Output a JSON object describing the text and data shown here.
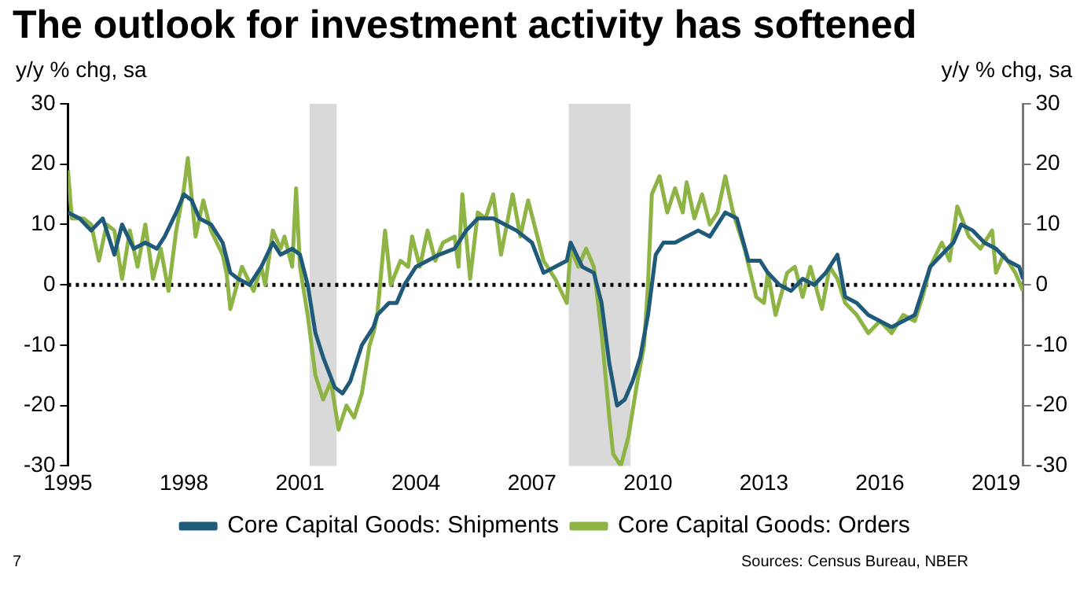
{
  "chart_data": {
    "type": "line",
    "title": "The outlook for investment activity has softened",
    "ylabel": "y/y % chg, sa",
    "y2label": "y/y % chg, sa",
    "annotations": [
      "7",
      "Sources: Census Bureau, NBER"
    ],
    "xlim": [
      1995,
      2019.7
    ],
    "xticks": [
      1995,
      1998,
      2001,
      2004,
      2007,
      2010,
      2013,
      2016,
      2019
    ],
    "ylim": [
      -30,
      30
    ],
    "yticks": [
      -30,
      -20,
      -10,
      0,
      10,
      20,
      30
    ],
    "y2lim": [
      -30,
      30
    ],
    "y2ticks": [
      -30,
      -20,
      -10,
      0,
      10,
      20,
      30
    ],
    "grid": false,
    "legend": "bottom",
    "line_style": "solid",
    "marker": "none",
    "ref_lines": [
      {
        "axis": "y",
        "value": 0,
        "color": "#000000",
        "line_style": "dotted"
      }
    ],
    "bands": [
      {
        "axis": "x",
        "from": 2001.25,
        "to": 2001.95,
        "color": "#d9d9d9"
      },
      {
        "axis": "x",
        "from": 2007.95,
        "to": 2009.55,
        "color": "#d9d9d9"
      }
    ],
    "series": [
      {
        "name": "Core Capital Goods: Shipments",
        "color": "#1f5a7a",
        "x": [
          1995.0,
          1995.3,
          1995.6,
          1995.9,
          1996.2,
          1996.4,
          1996.7,
          1997.0,
          1997.3,
          1997.5,
          1997.8,
          1998.0,
          1998.2,
          1998.4,
          1998.7,
          1999.0,
          1999.2,
          1999.4,
          1999.7,
          2000.0,
          2000.3,
          2000.5,
          2000.8,
          2001.0,
          2001.2,
          2001.4,
          2001.6,
          2001.9,
          2002.1,
          2002.3,
          2002.6,
          2002.9,
          2003.0,
          2003.3,
          2003.5,
          2003.7,
          2004.0,
          2004.3,
          2004.6,
          2005.0,
          2005.3,
          2005.6,
          2006.0,
          2006.3,
          2006.6,
          2007.0,
          2007.3,
          2007.6,
          2007.9,
          2008.0,
          2008.3,
          2008.6,
          2008.8,
          2009.0,
          2009.2,
          2009.4,
          2009.6,
          2009.8,
          2010.0,
          2010.2,
          2010.4,
          2010.7,
          2011.0,
          2011.3,
          2011.6,
          2012.0,
          2012.3,
          2012.6,
          2012.9,
          2013.1,
          2013.4,
          2013.7,
          2014.0,
          2014.3,
          2014.6,
          2014.9,
          2015.1,
          2015.4,
          2015.7,
          2016.0,
          2016.3,
          2016.6,
          2016.9,
          2017.1,
          2017.3,
          2017.6,
          2017.9,
          2018.1,
          2018.4,
          2018.7,
          2019.0,
          2019.3,
          2019.6,
          2019.7
        ],
        "values": [
          12,
          11,
          9,
          11,
          5,
          10,
          6,
          7,
          6,
          8,
          12,
          15,
          14,
          11,
          10,
          7,
          2,
          1,
          0,
          3,
          7,
          5,
          6,
          5,
          0,
          -8,
          -12,
          -17,
          -18,
          -16,
          -10,
          -7,
          -5,
          -3,
          -3,
          0,
          3,
          4,
          5,
          6,
          9,
          11,
          11,
          10,
          9,
          7,
          2,
          3,
          4,
          7,
          3,
          2,
          -3,
          -13,
          -20,
          -19,
          -16,
          -12,
          -5,
          5,
          7,
          7,
          8,
          9,
          8,
          12,
          11,
          4,
          4,
          2,
          0,
          -1,
          1,
          0,
          2,
          5,
          -2,
          -3,
          -5,
          -6,
          -7,
          -6,
          -5,
          -1,
          3,
          5,
          7,
          10,
          9,
          7,
          6,
          4,
          3,
          1
        ]
      },
      {
        "name": "Core Capital Goods: Orders",
        "color": "#8db444",
        "x": [
          1995.0,
          1995.1,
          1995.4,
          1995.6,
          1995.8,
          1996.0,
          1996.2,
          1996.4,
          1996.6,
          1996.8,
          1997.0,
          1997.2,
          1997.4,
          1997.6,
          1997.8,
          1998.0,
          1998.1,
          1998.3,
          1998.5,
          1998.7,
          1999.0,
          1999.1,
          1999.2,
          1999.5,
          1999.8,
          2000.0,
          2000.1,
          2000.3,
          2000.5,
          2000.6,
          2000.8,
          2000.9,
          2001.0,
          2001.2,
          2001.4,
          2001.6,
          2001.8,
          2002.0,
          2002.2,
          2002.4,
          2002.6,
          2002.8,
          2002.9,
          2003.0,
          2003.1,
          2003.2,
          2003.35,
          2003.6,
          2003.8,
          2003.9,
          2004.1,
          2004.3,
          2004.5,
          2004.7,
          2005.0,
          2005.1,
          2005.2,
          2005.4,
          2005.6,
          2005.8,
          2006.0,
          2006.2,
          2006.5,
          2006.7,
          2006.9,
          2007.1,
          2007.3,
          2007.6,
          2007.9,
          2008.0,
          2008.2,
          2008.4,
          2008.6,
          2008.8,
          2009.0,
          2009.1,
          2009.3,
          2009.5,
          2009.7,
          2009.9,
          2010.0,
          2010.1,
          2010.3,
          2010.5,
          2010.7,
          2010.9,
          2011.0,
          2011.2,
          2011.4,
          2011.6,
          2011.8,
          2012.0,
          2012.2,
          2012.5,
          2012.8,
          2013.0,
          2013.1,
          2013.3,
          2013.6,
          2013.8,
          2014.0,
          2014.2,
          2014.5,
          2014.7,
          2014.9,
          2015.1,
          2015.4,
          2015.7,
          2016.0,
          2016.3,
          2016.6,
          2016.9,
          2017.1,
          2017.3,
          2017.6,
          2017.8,
          2018.0,
          2018.3,
          2018.6,
          2018.9,
          2019.0,
          2019.2,
          2019.5,
          2019.7
        ],
        "values": [
          19,
          11,
          11,
          10,
          4,
          10,
          9,
          1,
          9,
          3,
          10,
          1,
          6,
          -1,
          9,
          16,
          21,
          8,
          14,
          9,
          5,
          2,
          -4,
          3,
          -1,
          3,
          0,
          9,
          6,
          8,
          3,
          16,
          3,
          -5,
          -15,
          -19,
          -16,
          -24,
          -20,
          -22,
          -18,
          -10,
          -8,
          -5,
          2,
          9,
          0,
          4,
          3,
          8,
          3,
          9,
          4,
          7,
          8,
          3,
          15,
          1,
          12,
          11,
          15,
          5,
          15,
          8,
          14,
          9,
          4,
          1,
          -3,
          6,
          3,
          6,
          3,
          -8,
          -22,
          -28,
          -30,
          -25,
          -17,
          -10,
          0,
          15,
          18,
          12,
          16,
          12,
          17,
          11,
          15,
          10,
          12,
          18,
          12,
          6,
          -2,
          -3,
          2,
          -5,
          2,
          3,
          -2,
          3,
          -4,
          3,
          1,
          -3,
          -5,
          -8,
          -6,
          -8,
          -5,
          -6,
          -2,
          3,
          7,
          4,
          13,
          8,
          6,
          9,
          2,
          5,
          2,
          -1
        ]
      }
    ]
  }
}
